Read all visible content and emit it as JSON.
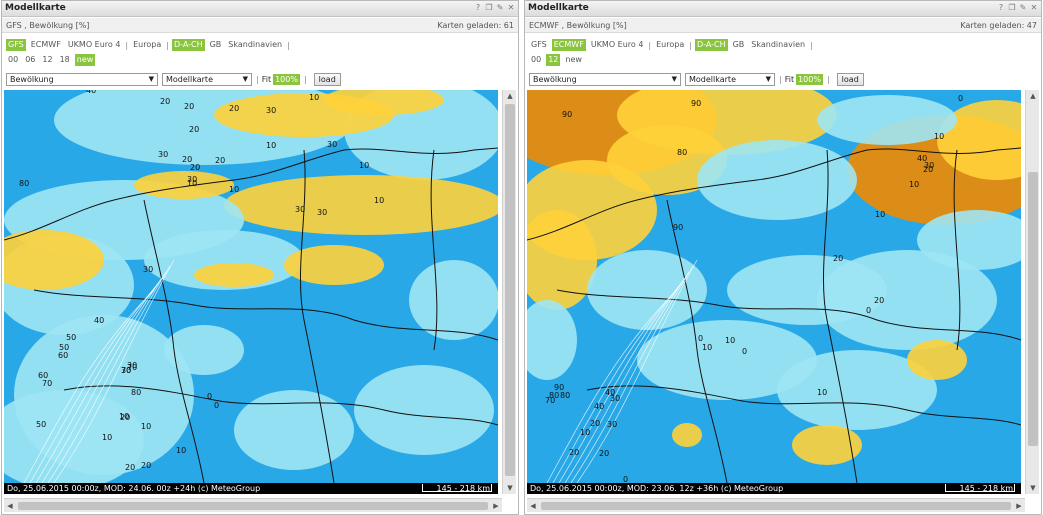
{
  "window_title": "Modellkarte",
  "window_icons": [
    "help-icon",
    "copy-icon",
    "pin-icon",
    "close-icon"
  ],
  "colors": {
    "active": "#8bc53f",
    "map_base": "#29a8e8",
    "cloud_high": "#f08a00",
    "cloud_mid": "#ffd23a",
    "cloud_low": "#9ee6f4"
  },
  "panels": [
    {
      "id": "left",
      "subtitle": "GFS , Bewölkung [%]",
      "maps_loaded": "Karten geladen: 61",
      "models": [
        {
          "label": "GFS",
          "active": true
        },
        {
          "label": "ECMWF",
          "active": false
        },
        {
          "label": "UKMO Euro 4",
          "active": false
        }
      ],
      "regions": [
        {
          "label": "Europa",
          "active": false
        },
        {
          "label": "D-A-CH",
          "active": true
        },
        {
          "label": "GB",
          "active": false
        },
        {
          "label": "Skandinavien",
          "active": false
        }
      ],
      "hours": [
        {
          "label": "00",
          "active": false
        },
        {
          "label": "06",
          "active": false
        },
        {
          "label": "12",
          "active": false
        },
        {
          "label": "18",
          "active": false
        },
        {
          "label": "new",
          "active": true
        }
      ],
      "parameter": "Bewölkung",
      "map_type": "Modellkarte",
      "fit_label": "Fit",
      "zoom": "100%",
      "load_label": "load",
      "status": "Do, 25.06.2015 00:00z, MOD: 24.06. 00z +24h (c) MeteoGroup",
      "scale": "145 - 218 km",
      "contour_labels": [
        "40",
        "20",
        "20",
        "20",
        "30",
        "10",
        "20",
        "10",
        "30",
        "10",
        "20",
        "30",
        "30",
        "10",
        "20",
        "20",
        "30",
        "30",
        "80",
        "10",
        "10",
        "30",
        "40",
        "50",
        "50",
        "60",
        "60",
        "70",
        "70",
        "80",
        "70",
        "30",
        "30",
        "10",
        "10",
        "50",
        "0",
        "0",
        "20",
        "10",
        "20",
        "10",
        "20"
      ],
      "vscroll_fraction": 0.98
    },
    {
      "id": "right",
      "subtitle": "ECMWF , Bewölkung [%]",
      "maps_loaded": "Karten geladen: 47",
      "models": [
        {
          "label": "GFS",
          "active": false
        },
        {
          "label": "ECMWF",
          "active": true
        },
        {
          "label": "UKMO Euro 4",
          "active": false
        }
      ],
      "regions": [
        {
          "label": "Europa",
          "active": false
        },
        {
          "label": "D-A-CH",
          "active": true
        },
        {
          "label": "GB",
          "active": false
        },
        {
          "label": "Skandinavien",
          "active": false
        }
      ],
      "hours": [
        {
          "label": "00",
          "active": false
        },
        {
          "label": "12",
          "active": true
        },
        {
          "label": "new",
          "active": false
        }
      ],
      "parameter": "Bewölkung",
      "map_type": "Modellkarte",
      "fit_label": "Fit",
      "zoom": "100%",
      "load_label": "load",
      "status": "Do, 25.06.2015 00:00z, MOD: 23.06. 12z +36h (c) MeteoGroup",
      "scale": "145 - 218 km",
      "contour_labels": [
        "90",
        "90",
        "0",
        "80",
        "10",
        "40",
        "30",
        "20",
        "10",
        "90",
        "10",
        "20",
        "0",
        "20",
        "10",
        "0",
        "10",
        "0",
        "10",
        "90",
        "80",
        "70",
        "80",
        "40",
        "30",
        "40",
        "30",
        "20",
        "20",
        "10",
        "20",
        "0"
      ],
      "vscroll_fraction": 0.72
    }
  ]
}
